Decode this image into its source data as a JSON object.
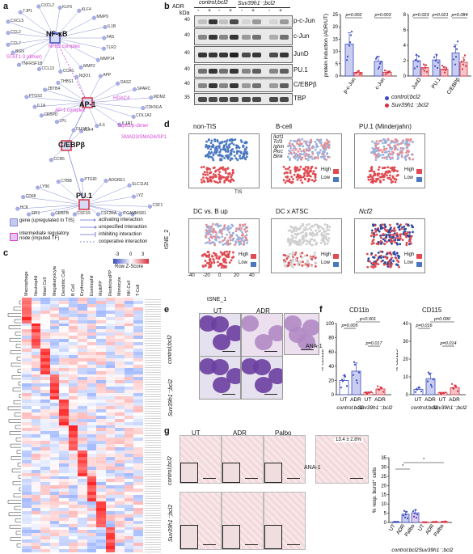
{
  "panels": {
    "a": "a",
    "b": "b",
    "c": "c",
    "d": "d",
    "e": "e",
    "f": "f",
    "g": "g"
  },
  "panel_a": {
    "hubs": [
      "NF-κB",
      "AP-1",
      "C/EBPβ",
      "PU.1"
    ],
    "magenta_labels": [
      "STAT1-3 (dimer)",
      "NFkB complex",
      "AP-1 complex",
      "HDAC4",
      "Tap63/p-dimer",
      "SMAD3/SMAD4/SP1",
      "Ssp1"
    ],
    "genes": [
      "FAS",
      "TLR2",
      "MMP14",
      "MMP2",
      "CCR1",
      "CCL13",
      "TNFRSF1B",
      "BGN",
      "CCL7",
      "CCL2",
      "CXCL5",
      "TJP1",
      "CXCL2",
      "KLF6",
      "KLF4",
      "MMP9",
      "IL1B",
      "IL1R1",
      "IL6",
      "DUSP1",
      "LPL",
      "CEBPD",
      "IL1A",
      "PTGS2",
      "ZBTB4",
      "THBS1",
      "NQO1",
      "APP",
      "OAS2",
      "SPARC",
      "MDM2",
      "CDKN1A",
      "COL1A2",
      "CCR5",
      "KLF4",
      "HCK",
      "CD68",
      "LY96",
      "CYBB",
      "PTGIR",
      "ADGRE1",
      "SLC11A1",
      "LYZ",
      "CSF1",
      "MSR1",
      "ITGAM",
      "CSF2RA",
      "CSF1R",
      "CEBPB",
      "SPI1"
    ],
    "legend": [
      "gene (upregulated in TIS)",
      "intermediate regulatory node (imputed TF)",
      "activating interaction",
      "unspecified interaction",
      "inhibiting interaction",
      "cooperative interaction"
    ]
  },
  "panel_b": {
    "group1": "control;bcl2",
    "group2": "Suv39h1⁻;bcl2",
    "adr_label": "ADR",
    "adr_states": [
      "-",
      "+",
      "-",
      "+",
      "-",
      "+",
      "-",
      "+"
    ],
    "kda_label": "kDa",
    "rows": [
      {
        "label": "p-c-Jun",
        "mw": "40"
      },
      {
        "label": "c-Jun",
        "mw": "40"
      },
      {
        "label": "JunD",
        "mw": "40"
      },
      {
        "label": "PU.1",
        "mw": "40"
      },
      {
        "label": "C/EBPβ",
        "mw": "40"
      },
      {
        "label": "TBP",
        "mw": "35"
      }
    ],
    "band_level": [
      [
        0.2,
        0.9,
        0.2,
        0.8,
        0.1,
        0.4,
        0.1,
        0.4
      ],
      [
        0.5,
        0.9,
        0.5,
        0.9,
        0.4,
        0.6,
        0.3,
        0.6
      ],
      [
        0.9,
        0.9,
        0.9,
        1.0,
        0.8,
        0.9,
        0.8,
        0.9
      ],
      [
        0.6,
        0.9,
        0.6,
        0.9,
        0.5,
        0.7,
        0.5,
        0.7
      ],
      [
        0.5,
        0.9,
        0.5,
        0.9,
        0.4,
        0.6,
        0.4,
        0.7
      ],
      [
        0.8,
        0.8,
        0.8,
        0.8,
        0.8,
        0.8,
        0.8,
        0.8
      ]
    ]
  },
  "chart_data": [
    {
      "type": "bar",
      "ylabel": "protein induction (ADR/UT)",
      "categories": [
        "p-c-Jun",
        "c-Jun"
      ],
      "series": [
        {
          "name": "control;bcl2",
          "values": [
            13,
            6
          ]
        },
        {
          "name": "Suv39h1⁻;bcl2",
          "values": [
            1.5,
            1.5
          ]
        }
      ],
      "pvalues": [
        "p=0.002",
        "p=0.003"
      ],
      "yticks": [
        0,
        5,
        10,
        15,
        20,
        25
      ],
      "ylim": [
        0,
        25
      ]
    },
    {
      "type": "bar",
      "categories": [
        "JunD",
        "PU.1",
        "C/EBPβ"
      ],
      "series": [
        {
          "name": "control;bcl2",
          "values": [
            2.0,
            2.1,
            3.0
          ]
        },
        {
          "name": "Suv39h1⁻;bcl2",
          "values": [
            1.1,
            0.9,
            1.8
          ]
        }
      ],
      "pvalues": [
        "p=0.023",
        "p=0.021",
        "p=0.084"
      ],
      "yticks": [
        0,
        2,
        4,
        6,
        8
      ],
      "ylim": [
        0,
        8
      ]
    },
    {
      "type": "bar",
      "title": "CD11b",
      "ylabel": "% CD11b⁺",
      "categories": [
        "UT",
        "ADR",
        "UT",
        "ADR"
      ],
      "values": [
        20,
        33,
        3,
        8
      ],
      "pvalues": [
        "p=0.005",
        "p<0.001",
        "p=0.017"
      ],
      "yticks": [
        0,
        20,
        40,
        60,
        80,
        100
      ],
      "ylim": [
        0,
        100
      ],
      "xgroups": [
        "control;bcl2",
        "Suv39h1⁻;bcl2"
      ]
    },
    {
      "type": "bar",
      "title": "CD115",
      "ylabel": "% CD115⁺",
      "categories": [
        "UT",
        "ADR",
        "UT",
        "ADR"
      ],
      "values": [
        3,
        9,
        1,
        4
      ],
      "pvalues": [
        "p=0.016",
        "p=0.090",
        "p=0.014"
      ],
      "yticks": [
        0,
        10,
        20,
        30,
        40
      ],
      "ylim": [
        0,
        40
      ],
      "xgroups": [
        "control;bcl2",
        "Suv39h1⁻;bcl2"
      ]
    },
    {
      "type": "bar",
      "ylabel": "% resp. burst⁺ cells",
      "categories": [
        "UT",
        "ADR",
        "Palbo",
        "UT",
        "ADR",
        "Palbo"
      ],
      "values": [
        0.3,
        4.5,
        5.2,
        0.1,
        0.3,
        0.4
      ],
      "yticks": [
        0,
        5,
        10,
        15,
        20,
        25,
        30,
        35
      ],
      "ylim": [
        0,
        35
      ],
      "xgroups": [
        "control;bcl2",
        "Suv39h1⁻;bcl2"
      ]
    }
  ],
  "legend_b": [
    "control;bcl2",
    "Suv39h1⁻;bcl2"
  ],
  "panel_c": {
    "columns": [
      "Macrophage",
      "Neutrophil",
      "Mast Cell",
      "Megakaryocyte",
      "Dendritic Cell",
      "B Cell",
      "Erythrocyte",
      "Eosinophil",
      "MultiPP",
      "RestrictedPP",
      "Monocyte",
      "NK-Cell",
      "T-Cell"
    ],
    "scale_label": "Row Z-Score",
    "scale_ticks": [
      "-3",
      "0",
      "3"
    ]
  },
  "panel_d": {
    "titles": [
      "non-TIS",
      "B-cell",
      "PU.1 (Minderjahn)",
      "DC vs. B up",
      "DC x ATSC",
      "Ncf2"
    ],
    "tis_label": "TIS",
    "bcell_genes": [
      "Ikzf1",
      "Tcf3",
      "Ighm",
      "Pkrc",
      "Blnk"
    ],
    "high": "High",
    "low": "Low",
    "xlabel": "tSNE_1",
    "ylabel": "tSNE_2",
    "ticks": [
      "-40",
      "-20",
      "0",
      "20",
      "40"
    ]
  },
  "panel_e": {
    "cols": [
      "UT",
      "ADR"
    ],
    "rows": [
      "control;bcl2",
      "Suv39h1⁻;bcl2"
    ],
    "extra": "ANA-1"
  },
  "panel_g": {
    "cols": [
      "UT",
      "ADR",
      "Palbo"
    ],
    "rows": [
      "control;bcl2",
      "Suv39h1⁻;bcl2"
    ],
    "extra": "ANA-1",
    "ana_value": "13.4 ± 2.8%"
  },
  "colors": {
    "control": "#3b4cc0",
    "suv": "#d7303f",
    "magenta": "#d63fd6",
    "node": "#8890d8"
  }
}
